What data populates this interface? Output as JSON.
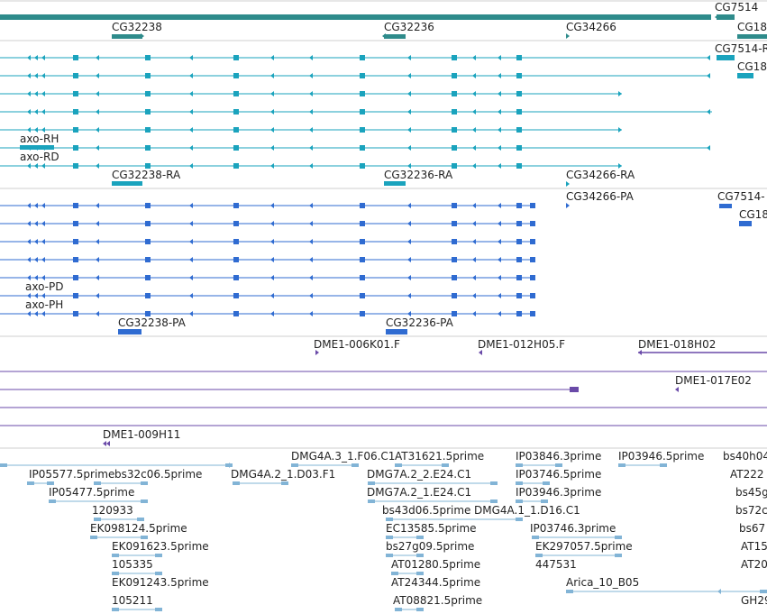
{
  "tracks": [
    {
      "id": "gene-span",
      "color": "#2e8b8b",
      "labels": [
        "CG7514",
        "CG32238",
        "CG32236",
        "CG34266",
        "CG18"
      ]
    },
    {
      "id": "transcripts-rna",
      "color": "#1aa3bd",
      "labels": [
        "CG7514-R",
        "CG18",
        "axo-RH",
        "axo-RD",
        "CG32238-RA",
        "CG32236-RA",
        "CG34266-RA"
      ]
    },
    {
      "id": "transcripts-protein",
      "color": "#2f6bd1",
      "labels": [
        "CG34266-PA",
        "CG7514-",
        "CG18",
        "axo-PD",
        "axo-PH",
        "CG32238-PA",
        "CG32236-PA"
      ]
    },
    {
      "id": "clones",
      "color": "#6a4aa8",
      "labels": [
        "DME1-006K01.F",
        "DME1-012H05.F",
        "DME1-018H02",
        "DME1-017E02",
        "DME1-009H11"
      ]
    },
    {
      "id": "ests",
      "color": "#82b4d6",
      "labels": [
        "DMG4A.3_1.F06.C1",
        "AT31621.5prime",
        "IP03846.3prime",
        "IP03946.5prime",
        "bs40h04",
        "IP05577.5prime",
        "bs32c06.5prime",
        "DMG4A.2_1.D03.F1",
        "DMG7A.2_2.E24.C1",
        "IP03746.5prime",
        "AT222",
        "IP05477.5prime",
        "DMG7A.2_1.E24.C1",
        "IP03946.3prime",
        "bs45g",
        "120933",
        "bs43d06.5prime",
        "DMG4A.1_1.D16.C1",
        "bs72c",
        "EK098124.5prime",
        "EC13585.5prime",
        "IP03746.3prime",
        "bs67",
        "EK091623.5prime",
        "bs27g09.5prime",
        "EK297057.5prime",
        "AT15",
        "105335",
        "AT01280.5prime",
        "447531",
        "AT20",
        "EK091243.5prime",
        "AT24344.5prime",
        "Arica_10_B05",
        "105211",
        "AT08821.5prime",
        "GH29"
      ]
    }
  ]
}
